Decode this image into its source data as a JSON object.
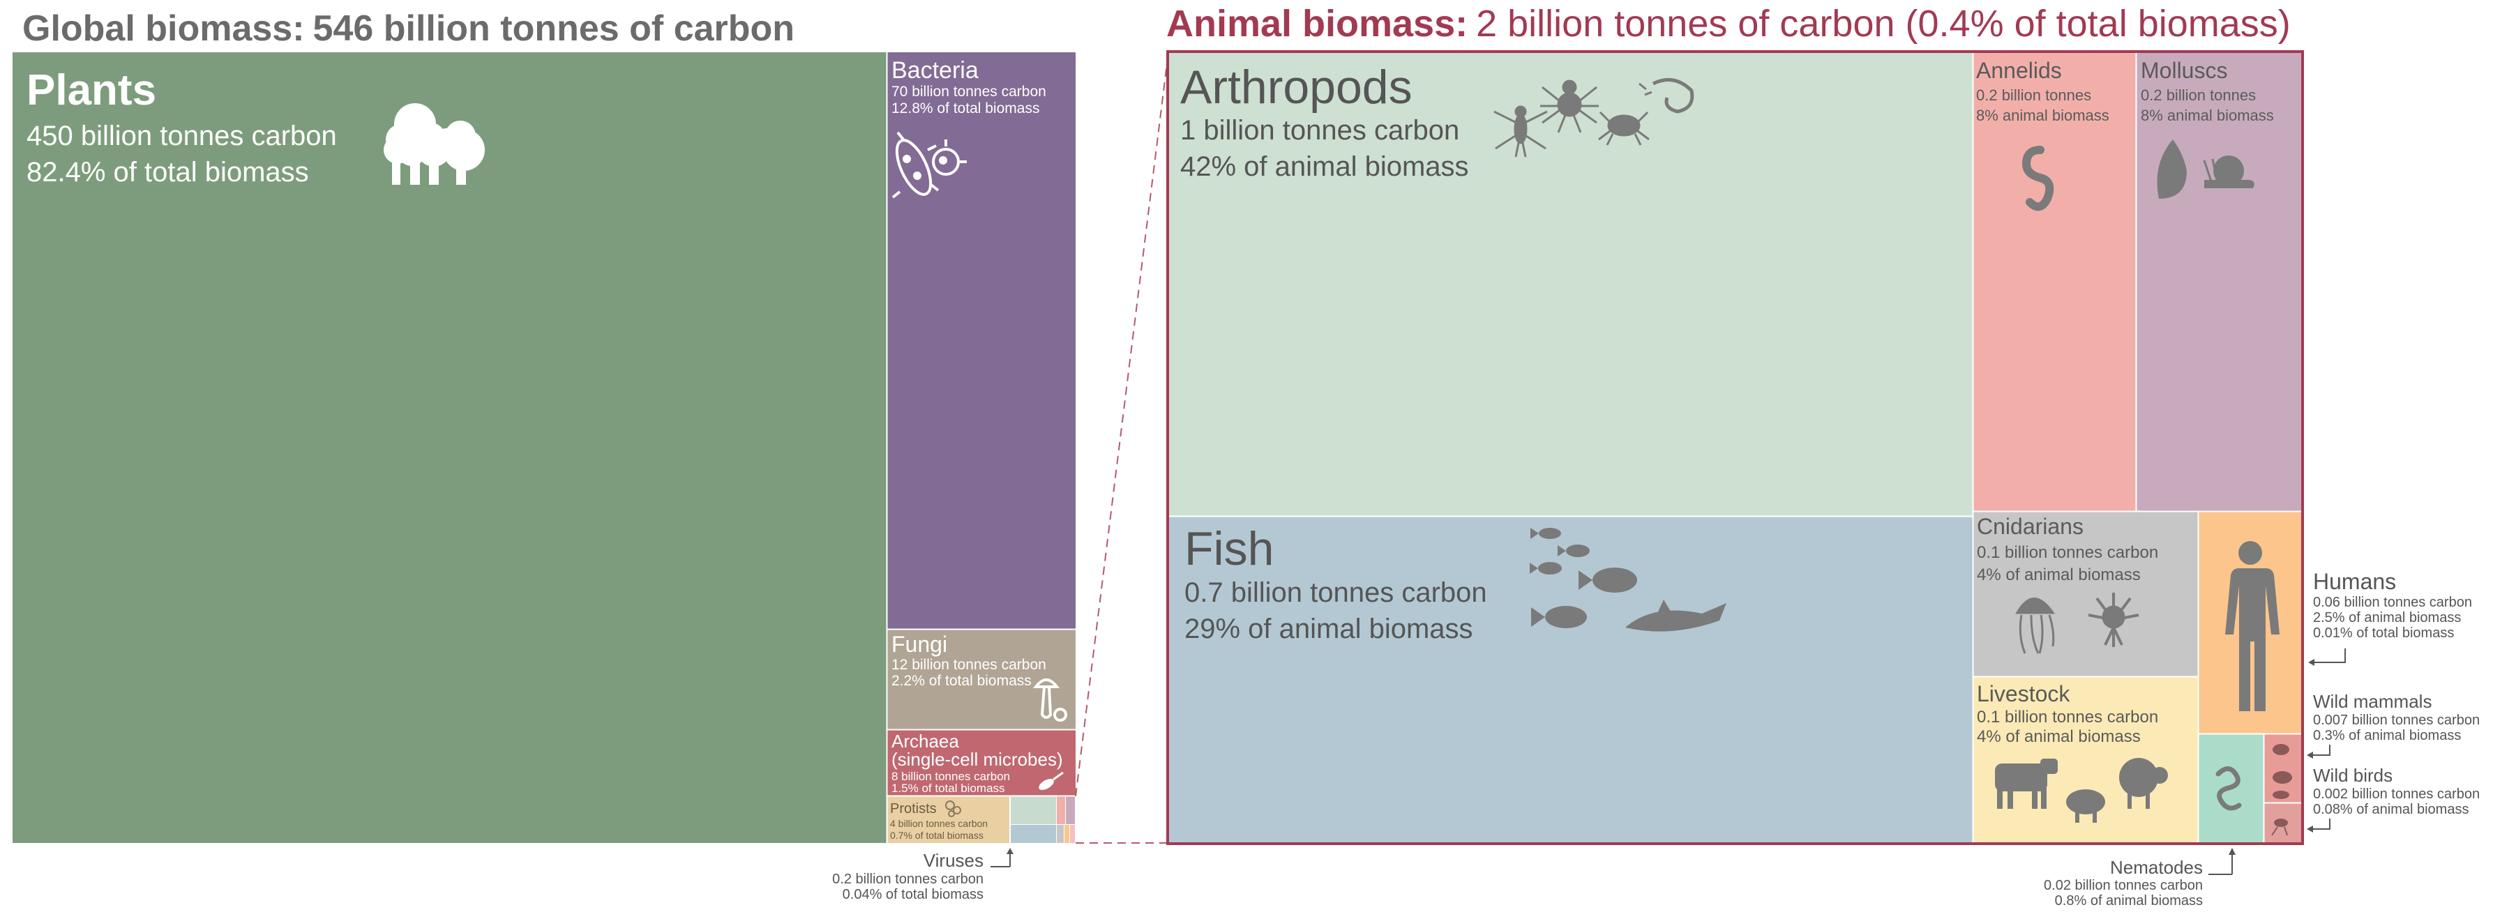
{
  "global": {
    "title_bold": "Global biomass:",
    "title_rest": "546 billion tonnes of carbon"
  },
  "animal": {
    "title_bold": "Animal biomass:",
    "title_rest": "2 billion tonnes of carbon (0.4% of total biomass)"
  },
  "chart_data": [
    {
      "type": "treemap",
      "title": "Global biomass: 546 billion tonnes of carbon",
      "unit": "billion tonnes of carbon",
      "items": [
        {
          "name": "Plants",
          "value": 450,
          "share_pct": 82.4,
          "lines": [
            "450 billion tonnes carbon",
            "82.4% of total biomass"
          ],
          "color": "#7d9c7d",
          "icon": "trees-icon"
        },
        {
          "name": "Bacteria",
          "value": 70,
          "share_pct": 12.8,
          "lines": [
            "70 billion tonnes carbon",
            "12.8% of total biomass"
          ],
          "color": "#826b94",
          "icon": "bacteria-icon"
        },
        {
          "name": "Fungi",
          "value": 12,
          "share_pct": 2.2,
          "lines": [
            "12 billion tonnes carbon",
            "2.2% of total biomass"
          ],
          "color": "#b0a594",
          "icon": "mushroom-icon"
        },
        {
          "name": "Archaea",
          "name2": "(single-cell microbes)",
          "value": 8,
          "share_pct": 1.5,
          "lines": [
            "8 billion tonnes carbon",
            "1.5% of total biomass"
          ],
          "color": "#c0676f",
          "icon": "microbe-icon"
        },
        {
          "name": "Protists",
          "value": 4,
          "share_pct": 0.7,
          "lines": [
            "4 billion tonnes carbon",
            "0.7% of total biomass"
          ],
          "color": "#e9cfa2",
          "icon": "protist-icon"
        },
        {
          "name": "Animals",
          "value": 2,
          "share_pct": 0.4,
          "color": "#c8dbcf"
        },
        {
          "name": "Viruses",
          "value": 0.2,
          "share_pct": 0.04,
          "lines": [
            "0.2 billion tonnes carbon",
            "0.04% of total biomass"
          ],
          "color": "#f2c1bf"
        }
      ]
    },
    {
      "type": "treemap",
      "title": "Animal biomass: 2 billion tonnes of carbon (0.4% of total biomass)",
      "unit": "billion tonnes of carbon",
      "items": [
        {
          "name": "Arthropods",
          "value": 1,
          "share_pct": 42,
          "lines": [
            "1 billion tonnes carbon",
            "42% of animal biomass"
          ],
          "color": "#cde0d2",
          "icon": "insects-icon"
        },
        {
          "name": "Fish",
          "value": 0.7,
          "share_pct": 29,
          "lines": [
            "0.7 billion tonnes carbon",
            "29% of animal biomass"
          ],
          "color": "#b3c8d2",
          "icon": "fish-icon"
        },
        {
          "name": "Annelids",
          "value": 0.2,
          "share_pct": 8,
          "lines": [
            "0.2 billion tonnes",
            "8% animal biomass"
          ],
          "color": "#f2afaa",
          "icon": "worm-icon"
        },
        {
          "name": "Molluscs",
          "value": 0.2,
          "share_pct": 8,
          "lines": [
            "0.2 billion tonnes",
            "8% animal biomass"
          ],
          "color": "#c7abbd",
          "icon": "snail-icon"
        },
        {
          "name": "Cnidarians",
          "value": 0.1,
          "share_pct": 4,
          "lines": [
            "0.1 billion tonnes carbon",
            "4% of animal biomass"
          ],
          "color": "#c6c6c6",
          "icon": "jellyfish-icon"
        },
        {
          "name": "Livestock",
          "value": 0.1,
          "share_pct": 4,
          "lines": [
            "0.1 billion tonnes carbon",
            "4% of animal biomass"
          ],
          "color": "#fbeab5",
          "icon": "livestock-icon"
        },
        {
          "name": "Humans",
          "value": 0.06,
          "share_pct": 2.5,
          "lines": [
            "0.06 billion tonnes carbon",
            "2.5% of animal biomass",
            "0.01% of total biomass"
          ],
          "color": "#fbc58c",
          "icon": "human-icon"
        },
        {
          "name": "Nematodes",
          "value": 0.02,
          "share_pct": 0.8,
          "lines": [
            "0.02 billion tonnes carbon",
            "0.8% of animal biomass"
          ],
          "color": "#abdcca",
          "icon": "nematode-icon"
        },
        {
          "name": "Wild mammals",
          "value": 0.007,
          "share_pct": 0.3,
          "lines": [
            "0.007 billion tonnes carbon",
            "0.3% of animal biomass"
          ],
          "color": "#e79c98",
          "icon": "mammal-icon"
        },
        {
          "name": "Wild birds",
          "value": 0.002,
          "share_pct": 0.08,
          "lines": [
            "0.002 billion tonnes carbon",
            "0.08% of animal biomass"
          ],
          "color": "#e2a09c",
          "icon": "bird-icon"
        }
      ]
    }
  ]
}
